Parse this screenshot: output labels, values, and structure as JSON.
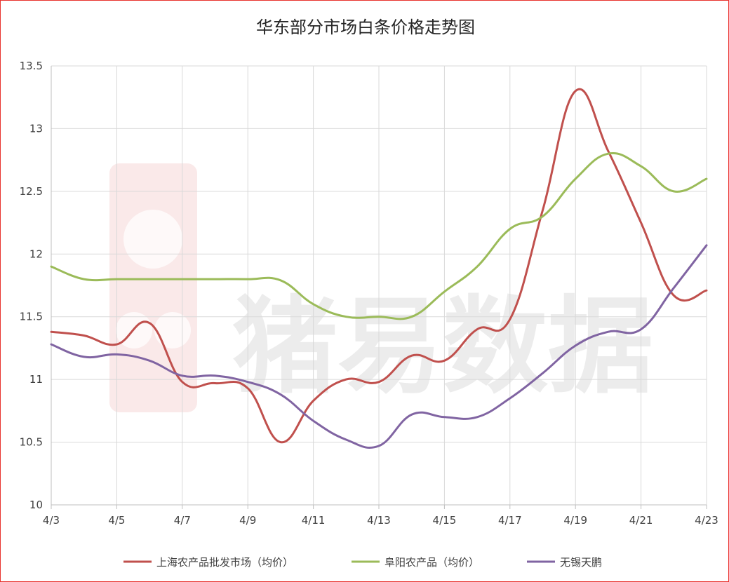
{
  "chart_data": {
    "type": "line",
    "title": "华东部分市场白条价格走势图",
    "watermark": "猪易数据",
    "xlabel": "",
    "ylabel": "",
    "x_tick_labels": [
      "4/3",
      "4/5",
      "4/7",
      "4/9",
      "4/11",
      "4/13",
      "4/15",
      "4/17",
      "4/19",
      "4/21",
      "4/23"
    ],
    "y_tick_labels": [
      "10",
      "10.5",
      "11",
      "11.5",
      "12",
      "12.5",
      "13",
      "13.5"
    ],
    "ylim": [
      10,
      13.5
    ],
    "grid": true,
    "legend_position": "bottom",
    "categories": [
      "4/3",
      "4/4",
      "4/5",
      "4/6",
      "4/7",
      "4/8",
      "4/9",
      "4/10",
      "4/11",
      "4/12",
      "4/13",
      "4/14",
      "4/15",
      "4/16",
      "4/17",
      "4/18",
      "4/19",
      "4/20",
      "4/21",
      "4/22",
      "4/23"
    ],
    "series": [
      {
        "name": "上海农产品批发市场（均价）",
        "color": "#c0504d",
        "values": [
          11.38,
          11.35,
          11.28,
          11.45,
          10.98,
          10.97,
          10.93,
          10.5,
          10.83,
          11.0,
          10.98,
          11.19,
          11.15,
          11.4,
          11.48,
          12.35,
          13.3,
          12.82,
          12.25,
          11.67,
          11.71
        ]
      },
      {
        "name": "阜阳农产品（均价）",
        "color": "#9bbb59",
        "values": [
          11.9,
          11.8,
          11.8,
          11.8,
          11.8,
          11.8,
          11.8,
          11.79,
          11.6,
          11.5,
          11.5,
          11.5,
          11.7,
          11.9,
          12.2,
          12.3,
          12.6,
          12.8,
          12.7,
          12.5,
          12.6
        ]
      },
      {
        "name": "无锡天鹏",
        "color": "#8064a2",
        "values": [
          11.28,
          11.18,
          11.2,
          11.15,
          11.03,
          11.03,
          10.98,
          10.88,
          10.67,
          10.52,
          10.47,
          10.72,
          10.7,
          10.7,
          10.85,
          11.05,
          11.27,
          11.38,
          11.4,
          11.73,
          12.07
        ]
      }
    ]
  }
}
